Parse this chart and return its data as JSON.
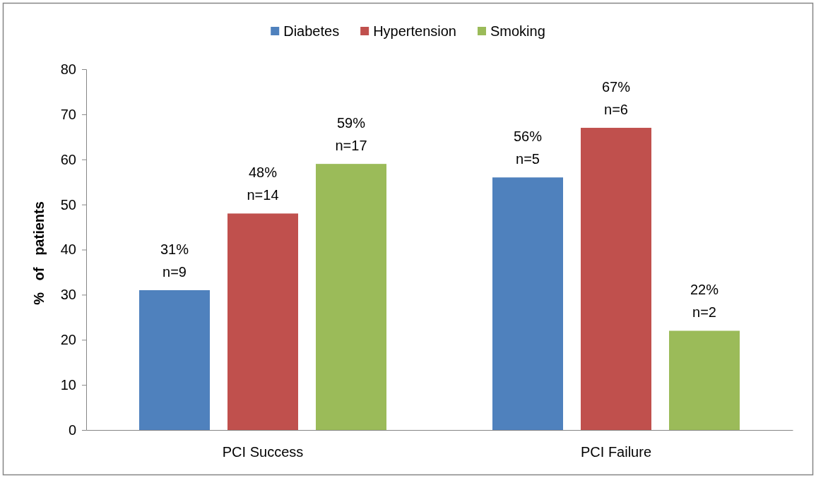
{
  "chart_data": {
    "type": "bar",
    "ylabel": "%   of   patients",
    "categories": [
      "PCI Success",
      "PCI Failure"
    ],
    "series": [
      {
        "name": "Diabetes",
        "color": "#4f81bd",
        "values": [
          31,
          56
        ],
        "value_labels": [
          "31%\nn=9",
          "56%\nn=5"
        ]
      },
      {
        "name": "Hypertension",
        "color": "#c0504d",
        "values": [
          48,
          67
        ],
        "value_labels": [
          "48%\nn=14",
          "67%\nn=6"
        ]
      },
      {
        "name": "Smoking",
        "color": "#9bbb59",
        "values": [
          59,
          22
        ],
        "value_labels": [
          "59%\nn=17",
          "22%\nn=2"
        ]
      }
    ],
    "ylim": [
      0,
      80
    ],
    "yticks": [
      0,
      10,
      20,
      30,
      40,
      50,
      60,
      70,
      80
    ],
    "legend": "top"
  }
}
